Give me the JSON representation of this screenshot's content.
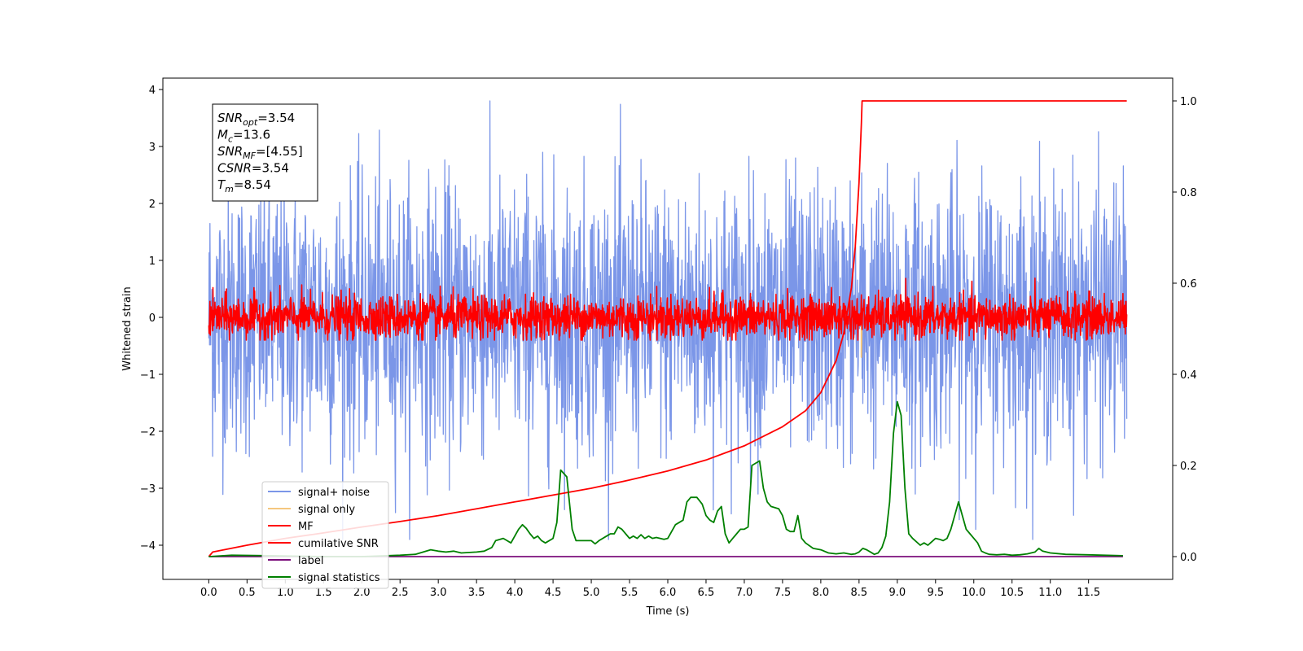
{
  "chart_data": {
    "type": "line",
    "title": "",
    "xlabel": "Time (s)",
    "ylabel": "Whitened strain",
    "xlim": [
      -0.6,
      12.6
    ],
    "ylim": [
      -4.6,
      4.2
    ],
    "y2lim": [
      -0.05,
      1.05
    ],
    "grid": false,
    "legend_position": "lower-left",
    "x_ticks": [
      "0.0",
      "0.5",
      "1.0",
      "1.5",
      "2.0",
      "2.5",
      "3.0",
      "3.5",
      "4.0",
      "4.5",
      "5.0",
      "5.5",
      "6.0",
      "6.5",
      "7.0",
      "7.5",
      "8.0",
      "8.5",
      "9.0",
      "9.5",
      "10.0",
      "10.5",
      "11.0",
      "11.5"
    ],
    "y_ticks": [
      "−4",
      "−3",
      "−2",
      "−1",
      "0",
      "1",
      "2",
      "3",
      "4"
    ],
    "y2_ticks": [
      "0.0",
      "0.2",
      "0.4",
      "0.6",
      "0.8",
      "1.0"
    ],
    "info_box": [
      {
        "base": "SNR",
        "sub": "opt",
        "value": "=3.54"
      },
      {
        "base": "M",
        "sub": "c",
        "value": "=13.6"
      },
      {
        "base": "SNR",
        "sub": "MF",
        "value": "=[4.55]"
      },
      {
        "base": "CSNR",
        "sub": "",
        "value": "=3.54"
      },
      {
        "base": "T",
        "sub": "m",
        "value": "=8.54"
      }
    ],
    "series": [
      {
        "name": "signal+ noise",
        "axis": "left",
        "color": "#7b96e8",
        "style": "noise",
        "x_range": [
          0,
          12
        ],
        "approx_range": [
          -3.9,
          3.8
        ]
      },
      {
        "name": "signal only",
        "axis": "left",
        "color": "#f5c77e",
        "style": "spike",
        "points": [
          [
            8.53,
            0
          ],
          [
            8.53,
            -0.7
          ],
          [
            8.54,
            0
          ]
        ]
      },
      {
        "name": "MF",
        "axis": "left",
        "color": "#ff0000",
        "style": "noise",
        "x_range": [
          0,
          12
        ],
        "approx_range": [
          -0.4,
          0.85
        ]
      },
      {
        "name": "cumilative SNR",
        "axis": "right",
        "color": "#ff0000",
        "style": "line",
        "points": [
          [
            0.0,
            0.0
          ],
          [
            0.05,
            0.01
          ],
          [
            0.5,
            0.025
          ],
          [
            1.0,
            0.04
          ],
          [
            1.5,
            0.052
          ],
          [
            2.0,
            0.065
          ],
          [
            2.5,
            0.077
          ],
          [
            3.0,
            0.09
          ],
          [
            3.5,
            0.105
          ],
          [
            4.0,
            0.12
          ],
          [
            4.5,
            0.135
          ],
          [
            5.0,
            0.15
          ],
          [
            5.5,
            0.168
          ],
          [
            6.0,
            0.188
          ],
          [
            6.5,
            0.212
          ],
          [
            7.0,
            0.243
          ],
          [
            7.5,
            0.285
          ],
          [
            7.8,
            0.32
          ],
          [
            8.0,
            0.36
          ],
          [
            8.2,
            0.43
          ],
          [
            8.3,
            0.49
          ],
          [
            8.4,
            0.59
          ],
          [
            8.45,
            0.68
          ],
          [
            8.5,
            0.82
          ],
          [
            8.53,
            0.95
          ],
          [
            8.54,
            1.0
          ],
          [
            12.0,
            1.0
          ]
        ]
      },
      {
        "name": "label",
        "axis": "right",
        "color": "#7b0f7b",
        "style": "line",
        "points": [
          [
            0.0,
            0.0
          ],
          [
            11.95,
            0.0
          ]
        ]
      },
      {
        "name": "signal statistics",
        "axis": "right",
        "color": "#008000",
        "style": "line",
        "points": [
          [
            0.0,
            0.0
          ],
          [
            0.3,
            0.003
          ],
          [
            0.8,
            0.002
          ],
          [
            1.5,
            0.0
          ],
          [
            2.0,
            0.0
          ],
          [
            2.5,
            0.003
          ],
          [
            2.7,
            0.005
          ],
          [
            2.9,
            0.015
          ],
          [
            3.0,
            0.012
          ],
          [
            3.1,
            0.01
          ],
          [
            3.2,
            0.012
          ],
          [
            3.3,
            0.008
          ],
          [
            3.5,
            0.01
          ],
          [
            3.6,
            0.012
          ],
          [
            3.7,
            0.02
          ],
          [
            3.75,
            0.035
          ],
          [
            3.85,
            0.04
          ],
          [
            3.9,
            0.035
          ],
          [
            3.95,
            0.03
          ],
          [
            4.0,
            0.045
          ],
          [
            4.05,
            0.06
          ],
          [
            4.1,
            0.07
          ],
          [
            4.15,
            0.062
          ],
          [
            4.2,
            0.05
          ],
          [
            4.25,
            0.04
          ],
          [
            4.3,
            0.045
          ],
          [
            4.35,
            0.035
          ],
          [
            4.4,
            0.03
          ],
          [
            4.5,
            0.04
          ],
          [
            4.55,
            0.075
          ],
          [
            4.6,
            0.19
          ],
          [
            4.68,
            0.175
          ],
          [
            4.75,
            0.06
          ],
          [
            4.8,
            0.035
          ],
          [
            4.85,
            0.035
          ],
          [
            5.0,
            0.035
          ],
          [
            5.05,
            0.028
          ],
          [
            5.1,
            0.035
          ],
          [
            5.2,
            0.045
          ],
          [
            5.25,
            0.05
          ],
          [
            5.3,
            0.05
          ],
          [
            5.35,
            0.065
          ],
          [
            5.4,
            0.06
          ],
          [
            5.45,
            0.05
          ],
          [
            5.5,
            0.04
          ],
          [
            5.55,
            0.045
          ],
          [
            5.6,
            0.04
          ],
          [
            5.65,
            0.048
          ],
          [
            5.7,
            0.04
          ],
          [
            5.75,
            0.045
          ],
          [
            5.8,
            0.04
          ],
          [
            5.85,
            0.042
          ],
          [
            5.9,
            0.04
          ],
          [
            5.95,
            0.038
          ],
          [
            6.0,
            0.04
          ],
          [
            6.05,
            0.055
          ],
          [
            6.1,
            0.07
          ],
          [
            6.2,
            0.08
          ],
          [
            6.25,
            0.12
          ],
          [
            6.3,
            0.13
          ],
          [
            6.38,
            0.13
          ],
          [
            6.45,
            0.115
          ],
          [
            6.5,
            0.09
          ],
          [
            6.55,
            0.08
          ],
          [
            6.6,
            0.075
          ],
          [
            6.65,
            0.1
          ],
          [
            6.7,
            0.11
          ],
          [
            6.75,
            0.05
          ],
          [
            6.8,
            0.03
          ],
          [
            6.85,
            0.04
          ],
          [
            6.9,
            0.05
          ],
          [
            6.95,
            0.06
          ],
          [
            7.0,
            0.06
          ],
          [
            7.05,
            0.065
          ],
          [
            7.1,
            0.2
          ],
          [
            7.2,
            0.21
          ],
          [
            7.25,
            0.15
          ],
          [
            7.3,
            0.12
          ],
          [
            7.35,
            0.11
          ],
          [
            7.45,
            0.105
          ],
          [
            7.5,
            0.09
          ],
          [
            7.55,
            0.06
          ],
          [
            7.6,
            0.055
          ],
          [
            7.65,
            0.055
          ],
          [
            7.7,
            0.09
          ],
          [
            7.75,
            0.04
          ],
          [
            7.8,
            0.03
          ],
          [
            7.9,
            0.018
          ],
          [
            8.0,
            0.015
          ],
          [
            8.1,
            0.008
          ],
          [
            8.2,
            0.006
          ],
          [
            8.3,
            0.008
          ],
          [
            8.4,
            0.005
          ],
          [
            8.45,
            0.006
          ],
          [
            8.5,
            0.01
          ],
          [
            8.55,
            0.018
          ],
          [
            8.6,
            0.015
          ],
          [
            8.7,
            0.005
          ],
          [
            8.75,
            0.008
          ],
          [
            8.8,
            0.02
          ],
          [
            8.85,
            0.045
          ],
          [
            8.9,
            0.12
          ],
          [
            8.95,
            0.27
          ],
          [
            9.0,
            0.34
          ],
          [
            9.05,
            0.31
          ],
          [
            9.1,
            0.15
          ],
          [
            9.15,
            0.05
          ],
          [
            9.2,
            0.04
          ],
          [
            9.3,
            0.025
          ],
          [
            9.35,
            0.03
          ],
          [
            9.4,
            0.025
          ],
          [
            9.5,
            0.04
          ],
          [
            9.55,
            0.038
          ],
          [
            9.6,
            0.035
          ],
          [
            9.65,
            0.04
          ],
          [
            9.7,
            0.06
          ],
          [
            9.75,
            0.09
          ],
          [
            9.8,
            0.12
          ],
          [
            9.85,
            0.09
          ],
          [
            9.9,
            0.06
          ],
          [
            9.95,
            0.05
          ],
          [
            10.0,
            0.04
          ],
          [
            10.05,
            0.03
          ],
          [
            10.1,
            0.012
          ],
          [
            10.15,
            0.008
          ],
          [
            10.2,
            0.005
          ],
          [
            10.3,
            0.004
          ],
          [
            10.4,
            0.005
          ],
          [
            10.5,
            0.003
          ],
          [
            10.6,
            0.004
          ],
          [
            10.7,
            0.006
          ],
          [
            10.8,
            0.01
          ],
          [
            10.85,
            0.018
          ],
          [
            10.9,
            0.012
          ],
          [
            11.0,
            0.008
          ],
          [
            11.2,
            0.005
          ],
          [
            11.5,
            0.004
          ],
          [
            11.95,
            0.002
          ]
        ]
      }
    ]
  }
}
